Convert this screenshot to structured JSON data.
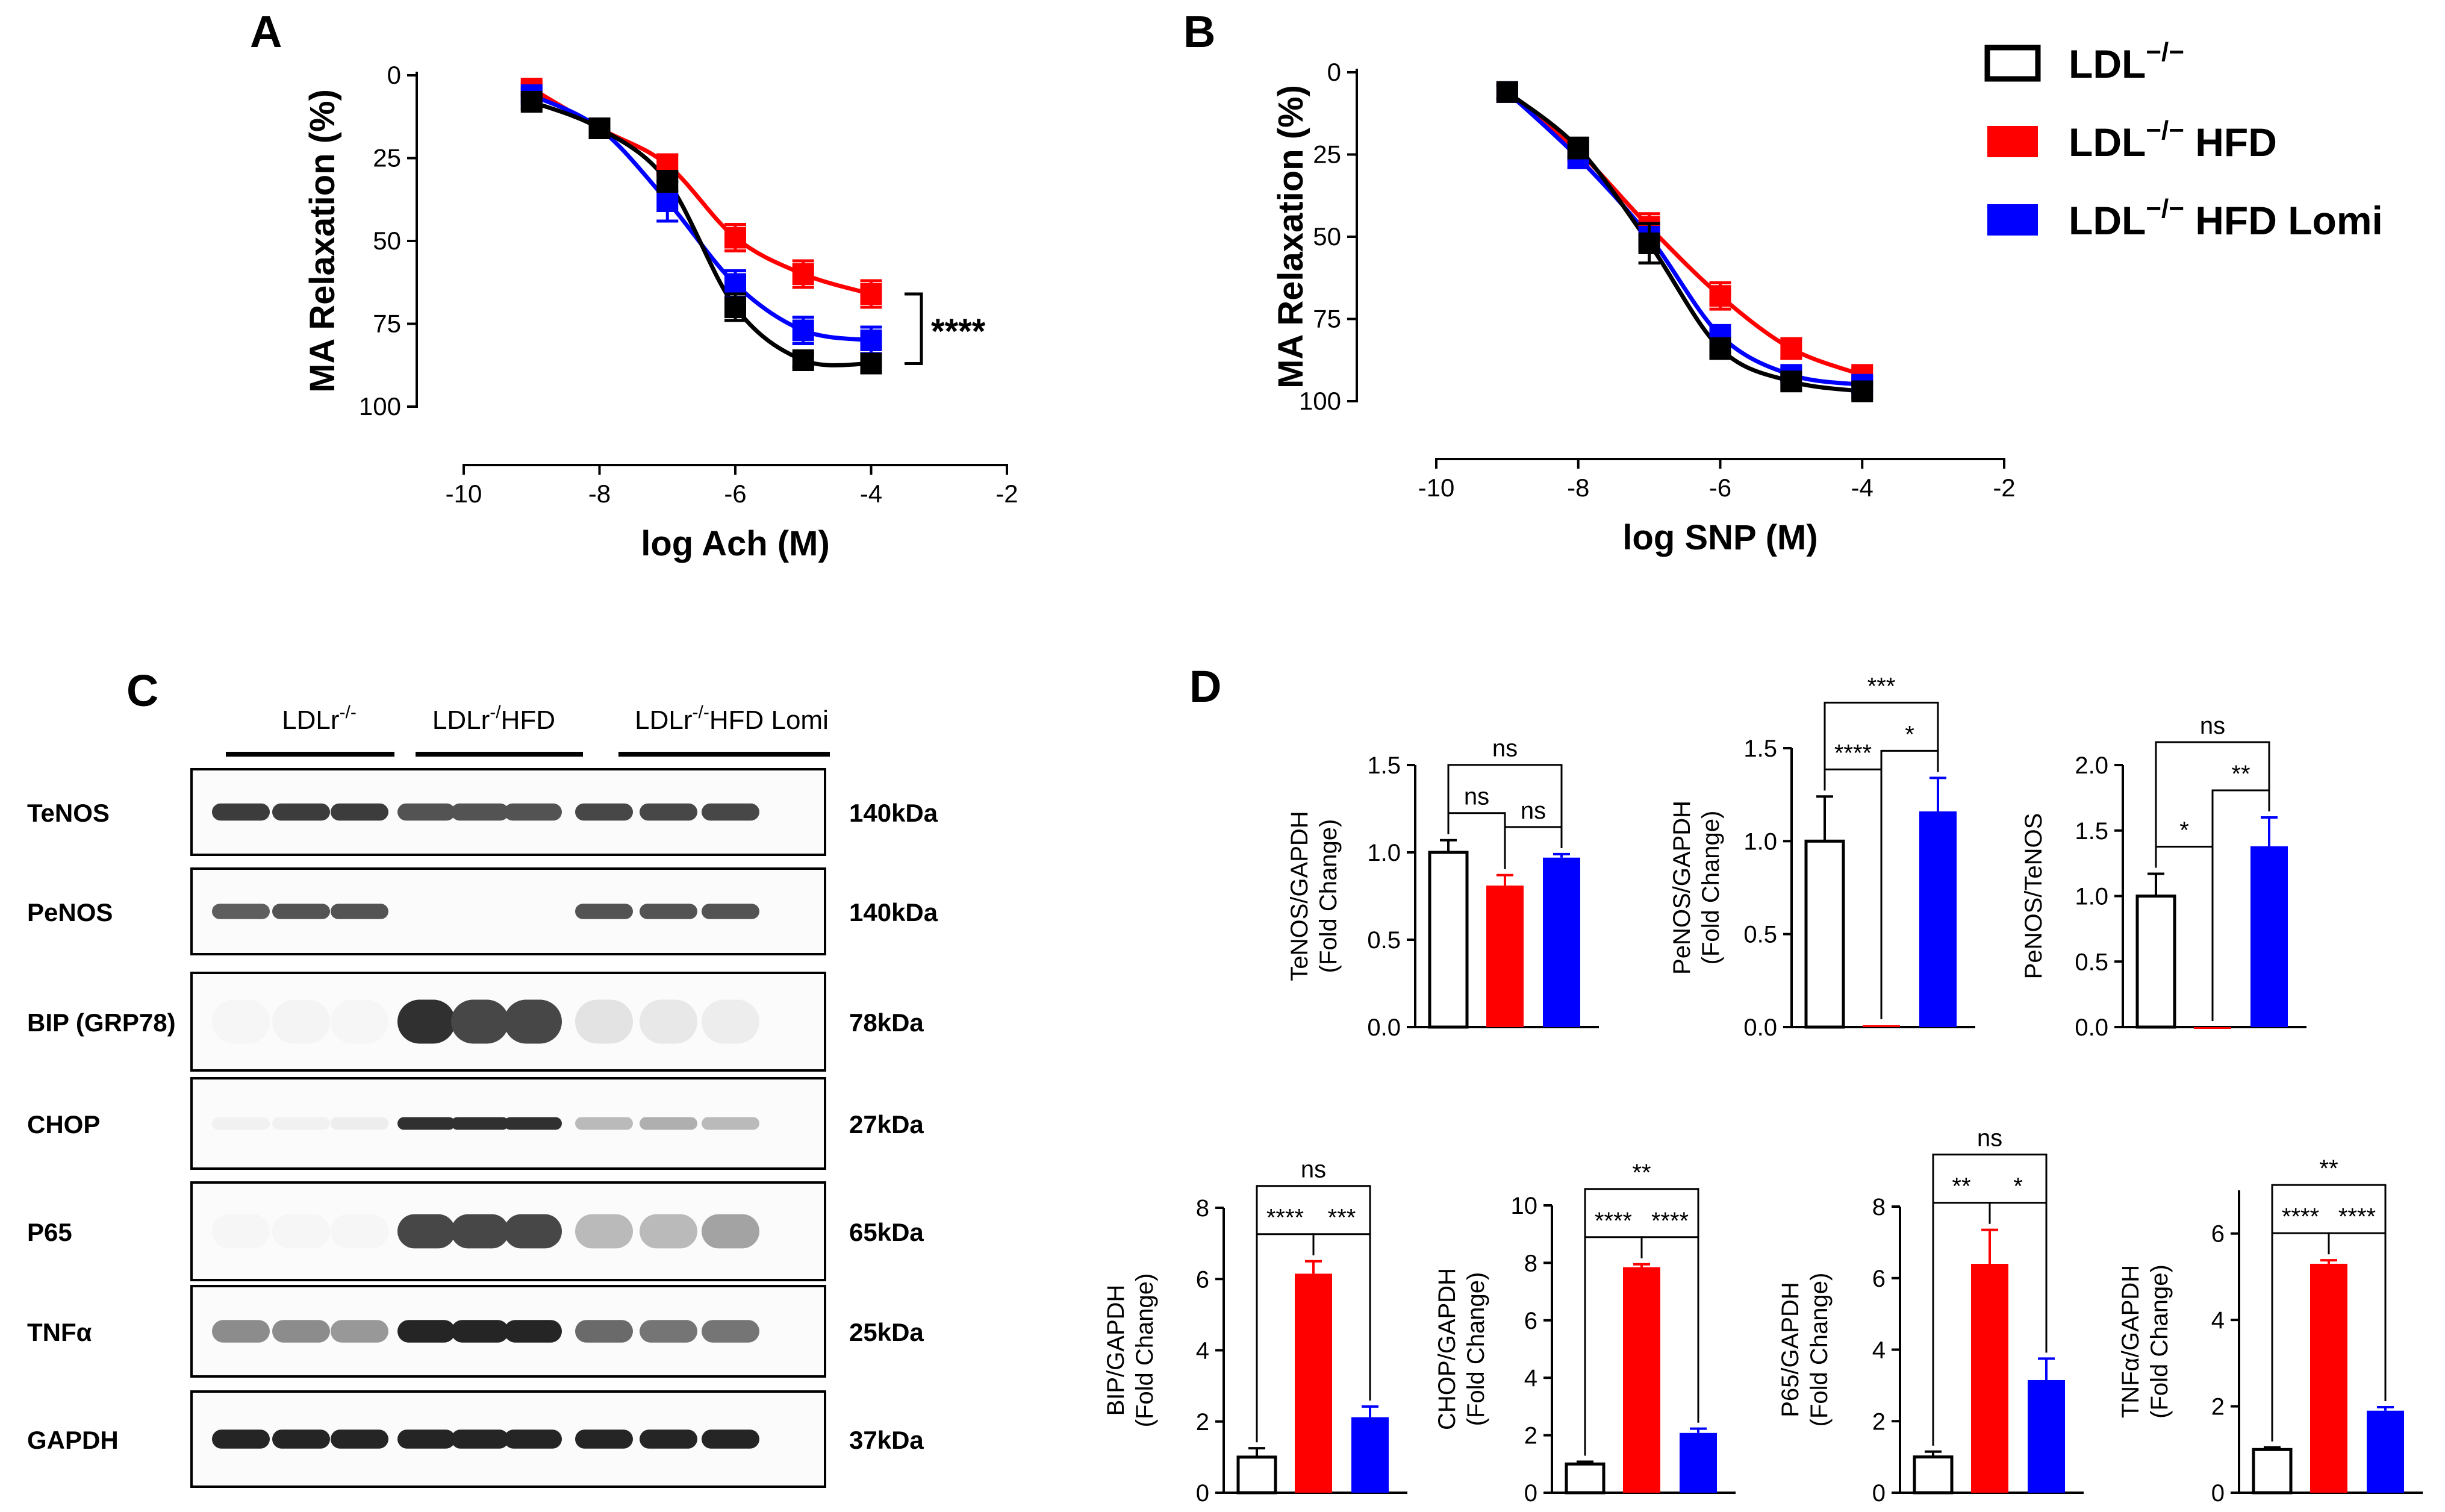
{
  "colors": {
    "control": "#000000",
    "hfd": "#ff0000",
    "lomi": "#0000ff"
  },
  "legend": {
    "items": [
      {
        "base": "LDL",
        "sup": "−/−",
        "suffix": "",
        "color": "#000000",
        "hollow": true
      },
      {
        "base": "LDL",
        "sup": "−/−",
        "suffix": " HFD",
        "color": "#ff0000",
        "hollow": false
      },
      {
        "base": "LDL",
        "sup": "−/−",
        "suffix": " HFD Lomi",
        "color": "#0000ff",
        "hollow": false
      }
    ]
  },
  "chart_data": [
    {
      "panel": "A",
      "type": "line",
      "title": "",
      "xlabel": "log Ach (M)",
      "ylabel": "MA Relaxation (%)",
      "xlim": [
        -10,
        -2
      ],
      "ylim": [
        0,
        100
      ],
      "y_inverted": true,
      "xticks": [
        -10,
        -8,
        -6,
        -4,
        -2
      ],
      "yticks": [
        0,
        25,
        50,
        75,
        100
      ],
      "significance": "****",
      "x": [
        -9,
        -8,
        -7,
        -6,
        -5,
        -4
      ],
      "series": [
        {
          "name": "LDL−/−",
          "color": "#000000",
          "values": [
            8,
            16,
            32,
            70,
            86,
            87
          ],
          "errors": [
            2,
            2,
            3,
            4,
            2,
            2
          ]
        },
        {
          "name": "LDL−/− HFD",
          "color": "#ff0000",
          "values": [
            4,
            16,
            27,
            49,
            60,
            66
          ],
          "errors": [
            2,
            2,
            3,
            4,
            4,
            4
          ]
        },
        {
          "name": "LDL−/− HFD Lomi",
          "color": "#0000ff",
          "values": [
            6,
            16,
            38,
            63,
            77,
            80
          ],
          "errors": [
            2,
            2,
            6,
            4,
            4,
            4
          ]
        }
      ]
    },
    {
      "panel": "B",
      "type": "line",
      "title": "",
      "xlabel": "log SNP (M)",
      "ylabel": "MA Relaxation (%)",
      "xlim": [
        -10,
        -2
      ],
      "ylim": [
        0,
        100
      ],
      "y_inverted": true,
      "xticks": [
        -10,
        -8,
        -6,
        -4,
        -2
      ],
      "yticks": [
        0,
        25,
        50,
        75,
        100
      ],
      "x": [
        -9,
        -8,
        -7,
        -6,
        -5,
        -4
      ],
      "series": [
        {
          "name": "LDL−/−",
          "color": "#000000",
          "values": [
            6,
            23,
            52,
            84,
            94,
            97
          ],
          "errors": [
            2,
            3,
            6,
            3,
            2,
            2
          ]
        },
        {
          "name": "LDL−/− HFD",
          "color": "#ff0000",
          "values": [
            6,
            24,
            47,
            68,
            84,
            92
          ],
          "errors": [
            2,
            3,
            4,
            4,
            3,
            2
          ]
        },
        {
          "name": "LDL−/− HFD Lomi",
          "color": "#0000ff",
          "values": [
            6,
            26,
            50,
            80,
            92,
            95
          ],
          "errors": [
            2,
            3,
            4,
            3,
            2,
            2
          ]
        }
      ]
    },
    {
      "panel": "D",
      "type": "bar",
      "title": "",
      "ylabel_lines": [
        "TeNOS/GAPDH",
        "(Fold Change)"
      ],
      "categories": [
        "LDL−/−",
        "LDL−/− HFD",
        "LDL−/− HFD Lomi"
      ],
      "values": [
        1.0,
        0.81,
        0.97
      ],
      "errors": [
        0.07,
        0.06,
        0.02
      ],
      "ylim": [
        0,
        1.5
      ],
      "yticks": [
        "0.0",
        "0.5",
        "1.0",
        "1.5"
      ],
      "comparisons": [
        {
          "a": 0,
          "b": 1,
          "label": "ns"
        },
        {
          "a": 1,
          "b": 2,
          "label": "ns"
        },
        {
          "a": 0,
          "b": 2,
          "label": "ns"
        }
      ]
    },
    {
      "panel": "D",
      "type": "bar",
      "title": "",
      "ylabel_lines": [
        "PeNOS/GAPDH",
        "(Fold Change)"
      ],
      "categories": [
        "LDL−/−",
        "LDL−/− HFD",
        "LDL−/− HFD Lomi"
      ],
      "values": [
        1.0,
        0.01,
        1.16
      ],
      "errors": [
        0.24,
        0.0,
        0.18
      ],
      "ylim": [
        0,
        1.5
      ],
      "yticks": [
        "0.0",
        "0.5",
        "1.0",
        "1.5"
      ],
      "comparisons": [
        {
          "a": 0,
          "b": 1,
          "label": "****"
        },
        {
          "a": 1,
          "b": 2,
          "label": "*"
        },
        {
          "a": 0,
          "b": 2,
          "label": "***"
        }
      ]
    },
    {
      "panel": "D",
      "type": "bar",
      "title": "",
      "ylabel_lines": [
        "PeNOS/TeNOS"
      ],
      "categories": [
        "LDL−/−",
        "LDL−/− HFD",
        "LDL−/− HFD Lomi"
      ],
      "values": [
        1.0,
        0.0,
        1.38
      ],
      "errors": [
        0.17,
        0.0,
        0.22
      ],
      "ylim": [
        0,
        2.0
      ],
      "yticks": [
        "0.0",
        "0.5",
        "1.0",
        "1.5",
        "2.0"
      ],
      "comparisons": [
        {
          "a": 0,
          "b": 1,
          "label": "*"
        },
        {
          "a": 1,
          "b": 2,
          "label": "**"
        },
        {
          "a": 0,
          "b": 2,
          "label": "ns"
        }
      ]
    },
    {
      "panel": "D",
      "type": "bar",
      "title": "",
      "ylabel_lines": [
        "BIP/GAPDH",
        "(Fold Change)"
      ],
      "categories": [
        "LDL−/−",
        "LDL−/− HFD",
        "LDL−/− HFD Lomi"
      ],
      "values": [
        1.0,
        6.15,
        2.12
      ],
      "errors": [
        0.25,
        0.35,
        0.3
      ],
      "ylim": [
        0,
        8
      ],
      "yticks": [
        "0",
        "2",
        "4",
        "6",
        "8"
      ],
      "comparisons": [
        {
          "a": 0,
          "b": 1,
          "label": "****"
        },
        {
          "a": 1,
          "b": 2,
          "label": "***"
        },
        {
          "a": 0,
          "b": 2,
          "label": "ns"
        }
      ]
    },
    {
      "panel": "D",
      "type": "bar",
      "title": "",
      "ylabel_lines": [
        "CHOP/GAPDH",
        "(Fold Change)"
      ],
      "categories": [
        "LDL−/−",
        "LDL−/− HFD",
        "LDL−/− HFD Lomi"
      ],
      "values": [
        1.0,
        7.85,
        2.08
      ],
      "errors": [
        0.08,
        0.1,
        0.15
      ],
      "ylim": [
        0,
        10
      ],
      "yticks": [
        "0",
        "2",
        "4",
        "6",
        "8",
        "10"
      ],
      "comparisons": [
        {
          "a": 0,
          "b": 1,
          "label": "****"
        },
        {
          "a": 1,
          "b": 2,
          "label": "****"
        },
        {
          "a": 0,
          "b": 2,
          "label": "**"
        }
      ]
    },
    {
      "panel": "D",
      "type": "bar",
      "title": "",
      "ylabel_lines": [
        "P65/GAPDH",
        "(Fold Change)"
      ],
      "categories": [
        "LDL−/−",
        "LDL−/− HFD",
        "LDL−/− HFD Lomi"
      ],
      "values": [
        1.0,
        6.4,
        3.15
      ],
      "errors": [
        0.15,
        0.95,
        0.6
      ],
      "ylim": [
        0,
        8
      ],
      "yticks": [
        "0",
        "2",
        "4",
        "6",
        "8"
      ],
      "comparisons": [
        {
          "a": 0,
          "b": 1,
          "label": "**"
        },
        {
          "a": 1,
          "b": 2,
          "label": "*"
        },
        {
          "a": 0,
          "b": 2,
          "label": "ns"
        }
      ]
    },
    {
      "panel": "D",
      "type": "bar",
      "title": "",
      "ylabel_lines": [
        "TNFα/GAPDH",
        "(Fold Change)"
      ],
      "categories": [
        "LDL−/−",
        "LDL−/− HFD",
        "LDL−/− HFD Lomi"
      ],
      "values": [
        1.0,
        5.3,
        1.9
      ],
      "errors": [
        0.05,
        0.08,
        0.08
      ],
      "ylim": [
        0,
        7
      ],
      "yticks": [
        "0",
        "2",
        "4",
        "6"
      ],
      "comparisons": [
        {
          "a": 0,
          "b": 1,
          "label": "****"
        },
        {
          "a": 1,
          "b": 2,
          "label": "****"
        },
        {
          "a": 0,
          "b": 2,
          "label": "**"
        }
      ]
    }
  ],
  "blot": {
    "panel_label": "C",
    "groups": [
      {
        "base": "LDLr",
        "sup": "-/-",
        "suffix": ""
      },
      {
        "base": "LDLr",
        "sup": "-/",
        "suffix": "HFD"
      },
      {
        "base": "LDLr",
        "sup": "-/-",
        "suffix": "HFD Lomi"
      }
    ],
    "rows": [
      {
        "label": "TeNOS",
        "kda": "140kDa",
        "intensity": [
          0.85,
          0.85,
          0.85,
          0.75,
          0.75,
          0.75,
          0.8,
          0.8,
          0.8
        ],
        "thickness": 0.2
      },
      {
        "label": "PeNOS",
        "kda": "140kDa",
        "intensity": [
          0.7,
          0.75,
          0.75,
          0,
          0,
          0,
          0.75,
          0.75,
          0.75
        ],
        "thickness": 0.18
      },
      {
        "label": "BIP (GRP78)",
        "kda": "78kDa",
        "intensity": [
          0.04,
          0.05,
          0.04,
          0.9,
          0.8,
          0.8,
          0.12,
          0.1,
          0.08
        ],
        "thickness": 0.45
      },
      {
        "label": "CHOP",
        "kda": "27kDa",
        "intensity": [
          0.06,
          0.06,
          0.08,
          0.9,
          0.9,
          0.9,
          0.3,
          0.35,
          0.3
        ],
        "thickness": 0.14
      },
      {
        "label": "P65",
        "kda": "65kDa",
        "intensity": [
          0.04,
          0.04,
          0.04,
          0.8,
          0.8,
          0.8,
          0.3,
          0.3,
          0.4
        ],
        "thickness": 0.35
      },
      {
        "label": "TNFα",
        "kda": "25kDa",
        "intensity": [
          0.5,
          0.5,
          0.45,
          0.95,
          0.95,
          0.95,
          0.65,
          0.6,
          0.6
        ],
        "thickness": 0.25
      },
      {
        "label": "GAPDH",
        "kda": "37kDa",
        "intensity": [
          0.95,
          0.95,
          0.95,
          0.95,
          0.95,
          0.95,
          0.95,
          0.95,
          0.95
        ],
        "thickness": 0.2
      }
    ]
  }
}
